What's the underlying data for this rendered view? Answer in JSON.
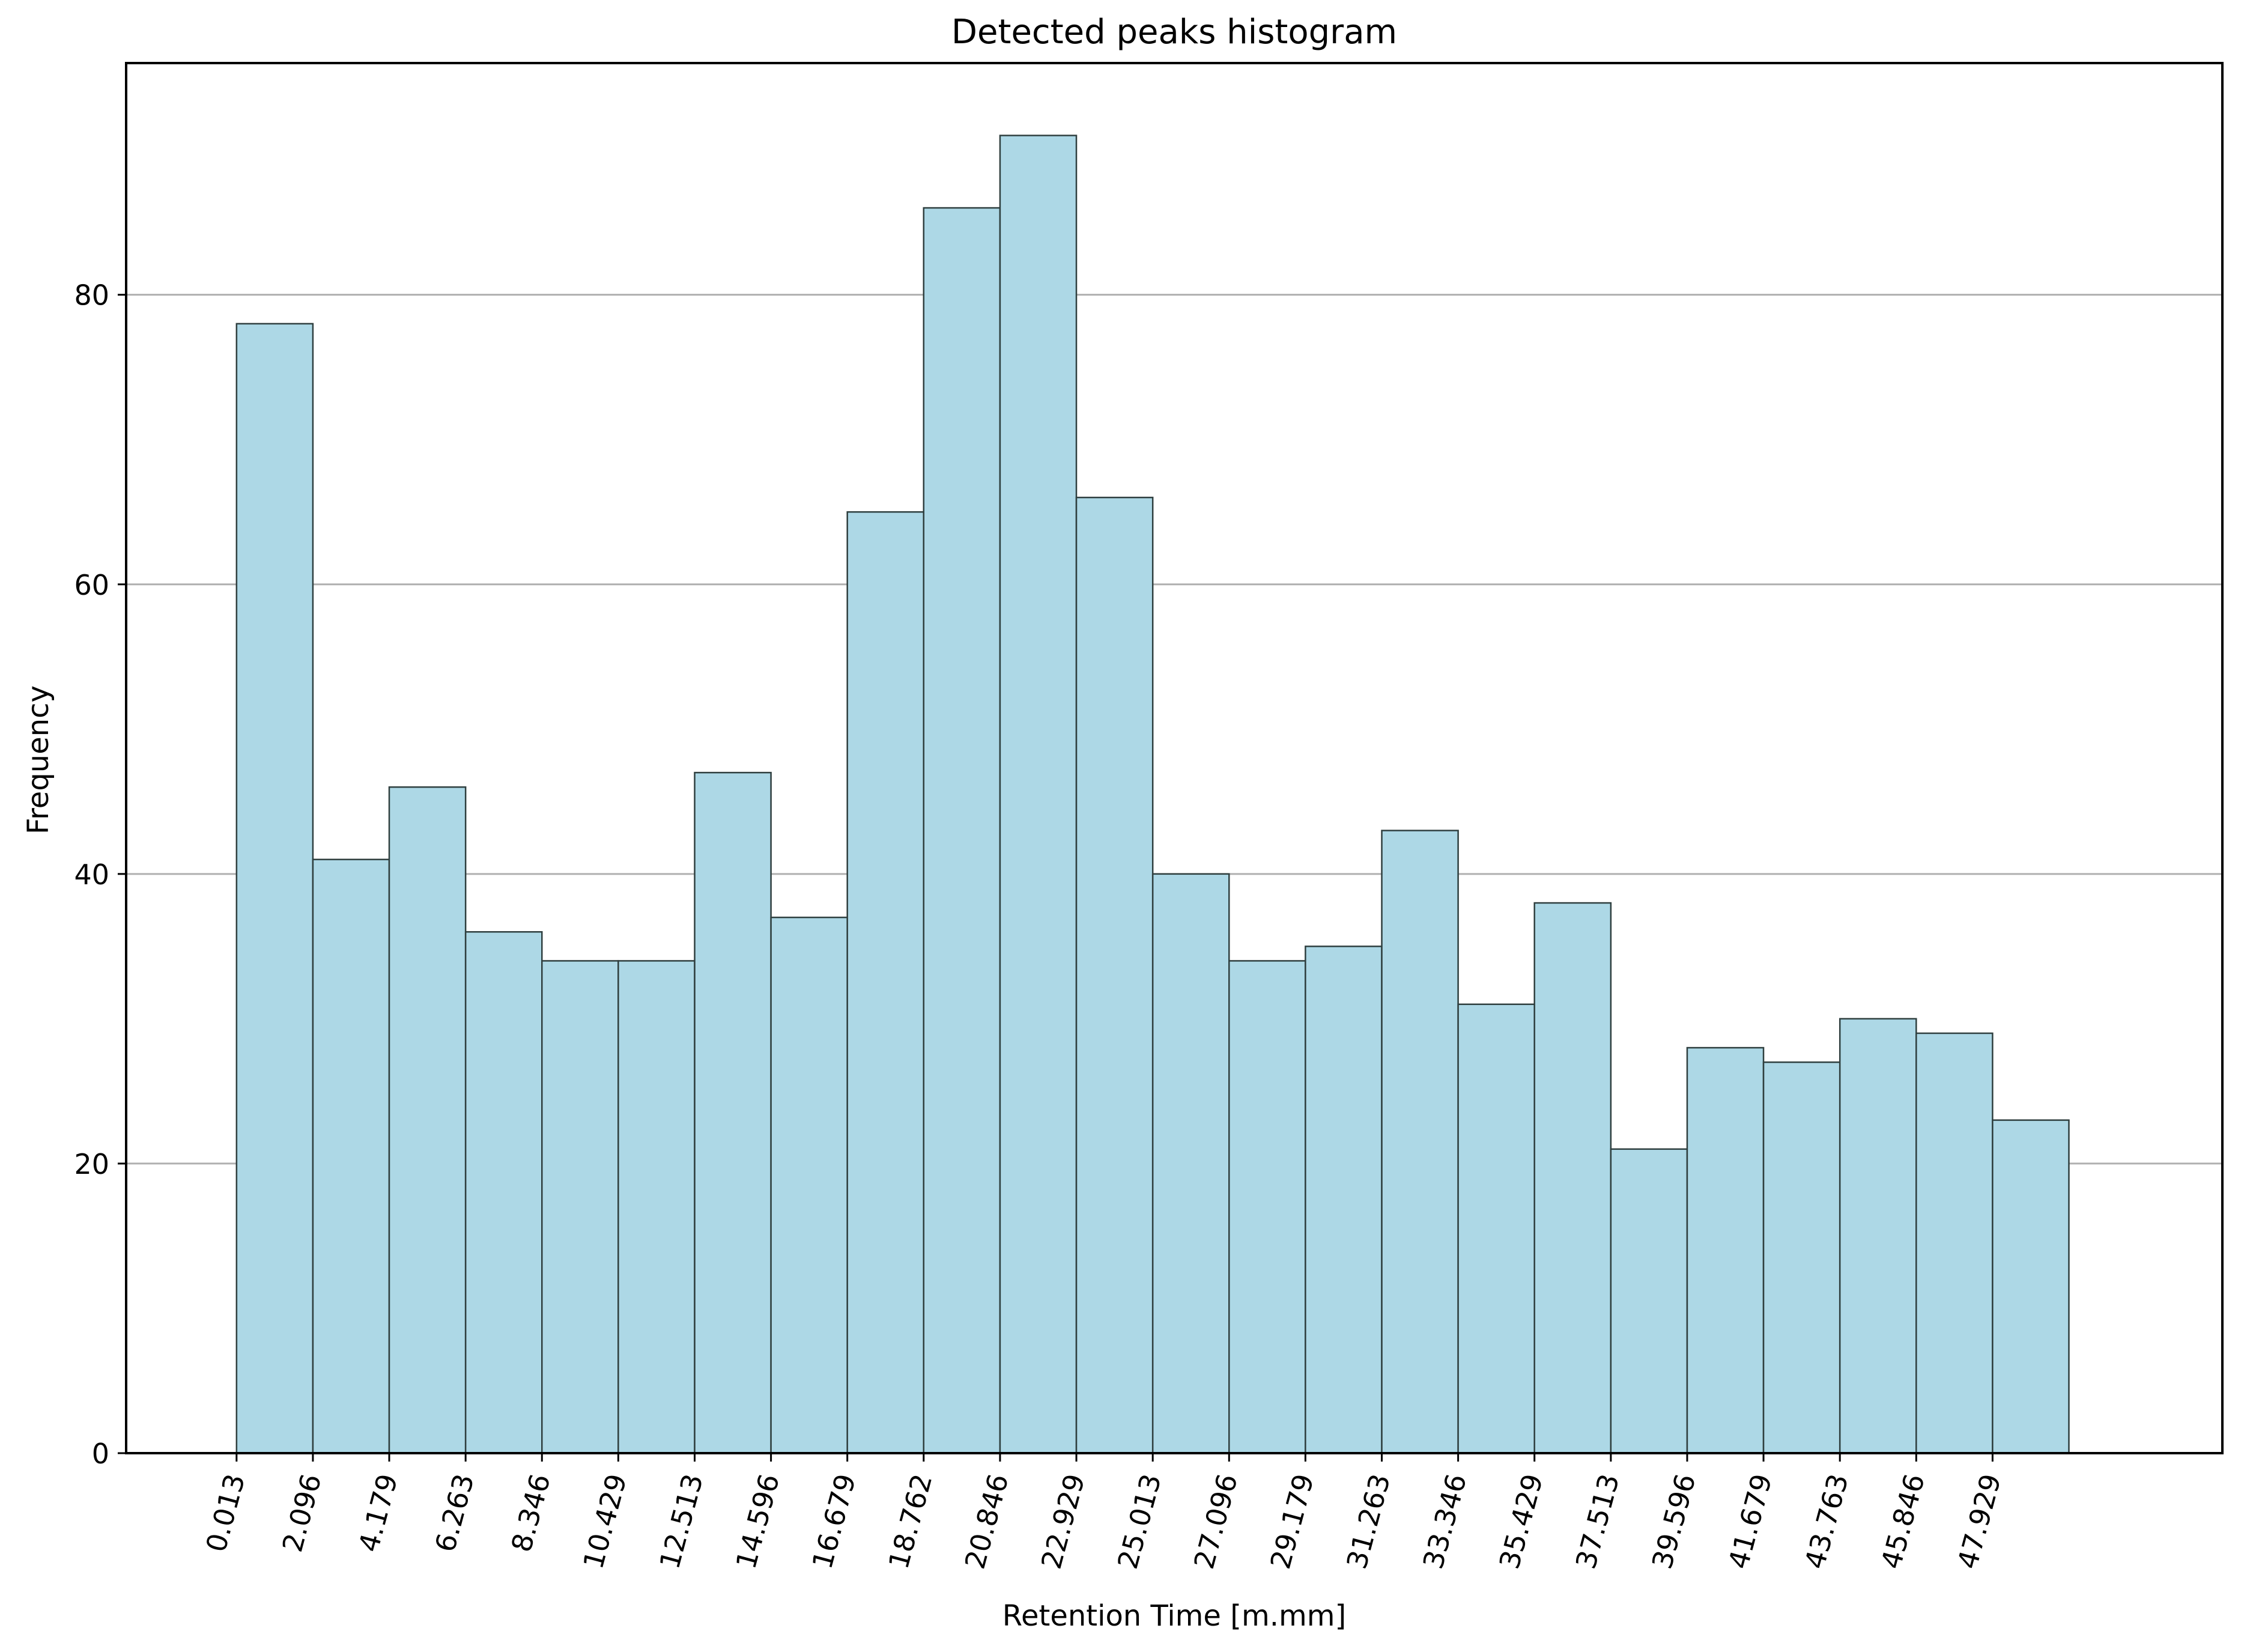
{
  "chart_data": {
    "type": "bar",
    "title": "Detected peaks histogram",
    "xlabel": "Retention Time [m.mm]",
    "ylabel": "Frequency",
    "bin_edges": [
      0.013,
      2.096,
      4.179,
      6.263,
      8.346,
      10.429,
      12.513,
      14.596,
      16.679,
      18.762,
      20.846,
      22.929,
      25.013,
      27.096,
      29.179,
      31.263,
      33.346,
      35.429,
      37.513,
      39.596,
      41.679,
      43.763,
      45.846,
      47.929,
      50.012
    ],
    "x_tick_labels": [
      "0.013",
      "2.096",
      "4.179",
      "6.263",
      "8.346",
      "10.429",
      "12.513",
      "14.596",
      "16.679",
      "18.762",
      "20.846",
      "22.929",
      "25.013",
      "27.096",
      "29.179",
      "31.263",
      "33.346",
      "35.429",
      "37.513",
      "39.596",
      "41.679",
      "43.763",
      "45.846",
      "47.929"
    ],
    "values": [
      78,
      41,
      46,
      36,
      34,
      34,
      47,
      37,
      65,
      86,
      91,
      66,
      40,
      34,
      35,
      43,
      31,
      38,
      21,
      28,
      27,
      30,
      29,
      23
    ],
    "ylim": [
      0,
      96
    ],
    "y_ticks": [
      0,
      20,
      40,
      60,
      80
    ],
    "grid": "horizontal",
    "legend": "none",
    "colors": {
      "bar_fill": "#add8e6",
      "bar_edge": "#2f3f3f",
      "grid": "#b0b0b0",
      "axes": "#000000"
    }
  }
}
